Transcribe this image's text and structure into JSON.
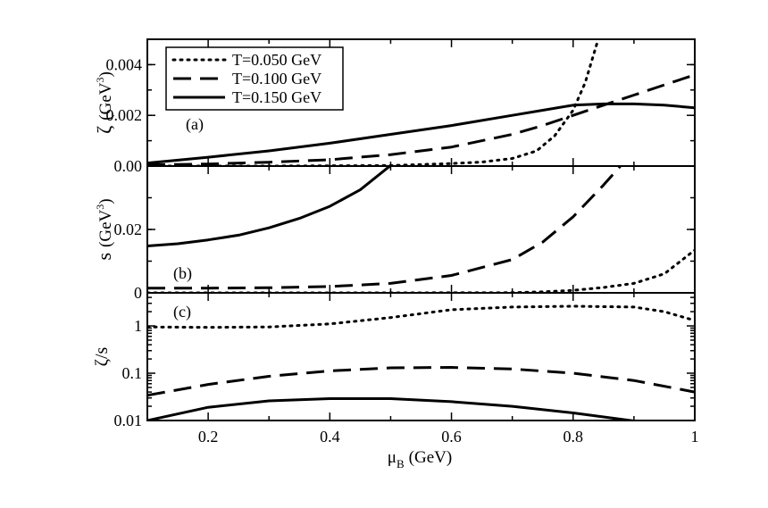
{
  "chart_data": [
    {
      "type": "line",
      "panel_label": "(a)",
      "ylabel_main": "ζ",
      "ylabel_unit": "(GeV",
      "ylabel_exp": "3",
      "ylabel_close": ")",
      "xlim": [
        0.1,
        1.0
      ],
      "ylim": [
        0,
        0.005
      ],
      "yscale": "linear",
      "yticks": [
        0,
        0.002,
        0.004
      ],
      "ytick_labels": [
        "0.00",
        "0.002",
        "0.004"
      ],
      "legend": {
        "position": "top-left",
        "entries": [
          {
            "label": "T=0.050 GeV",
            "style": "dotted"
          },
          {
            "label": "T=0.100 GeV",
            "style": "dashed"
          },
          {
            "label": "T=0.150 GeV",
            "style": "solid"
          }
        ]
      },
      "series": [
        {
          "name": "T=0.050 GeV",
          "style": "dotted",
          "x": [
            0.1,
            0.3,
            0.5,
            0.6,
            0.65,
            0.7,
            0.74,
            0.77,
            0.8,
            0.82,
            0.84
          ],
          "y": [
            0.0,
            0.0,
            2e-05,
            0.0001,
            0.00016,
            0.0003,
            0.0006,
            0.0012,
            0.0022,
            0.0033,
            0.0049
          ]
        },
        {
          "name": "T=0.100 GeV",
          "style": "dashed",
          "x": [
            0.1,
            0.2,
            0.3,
            0.4,
            0.5,
            0.6,
            0.7,
            0.75,
            0.8,
            0.85,
            0.9,
            0.95,
            1.0
          ],
          "y": [
            5e-05,
            8e-05,
            0.00015,
            0.00025,
            0.00045,
            0.00075,
            0.00125,
            0.0016,
            0.002,
            0.0024,
            0.0028,
            0.0032,
            0.0036
          ]
        },
        {
          "name": "T=0.150 GeV",
          "style": "solid",
          "x": [
            0.1,
            0.2,
            0.3,
            0.4,
            0.5,
            0.6,
            0.7,
            0.75,
            0.8,
            0.85,
            0.9,
            0.95,
            1.0
          ],
          "y": [
            0.00012,
            0.00035,
            0.0006,
            0.0009,
            0.00125,
            0.0016,
            0.002,
            0.0022,
            0.0024,
            0.00245,
            0.00245,
            0.0024,
            0.0023
          ]
        }
      ]
    },
    {
      "type": "line",
      "panel_label": "(b)",
      "ylabel_main": "s",
      "ylabel_unit": "(GeV",
      "ylabel_exp": "3",
      "ylabel_close": ")",
      "xlim": [
        0.1,
        1.0
      ],
      "ylim": [
        0,
        0.04
      ],
      "yscale": "linear",
      "yticks": [
        0,
        0.02
      ],
      "ytick_labels": [
        "0",
        "0.02"
      ],
      "series": [
        {
          "name": "T=0.050 GeV",
          "style": "dotted",
          "x": [
            0.1,
            0.5,
            0.7,
            0.75,
            0.8,
            0.85,
            0.9,
            0.95,
            1.0
          ],
          "y": [
            0.0,
            0.0,
            5e-05,
            0.0003,
            0.0008,
            0.0017,
            0.003,
            0.006,
            0.0135
          ]
        },
        {
          "name": "T=0.100 GeV",
          "style": "dashed",
          "x": [
            0.1,
            0.2,
            0.3,
            0.4,
            0.5,
            0.6,
            0.7,
            0.75,
            0.8,
            0.85,
            0.88
          ],
          "y": [
            0.0015,
            0.0015,
            0.0016,
            0.002,
            0.003,
            0.0055,
            0.0105,
            0.016,
            0.024,
            0.034,
            0.0405
          ]
        },
        {
          "name": "T=0.150 GeV",
          "style": "solid",
          "x": [
            0.1,
            0.15,
            0.2,
            0.25,
            0.3,
            0.35,
            0.4,
            0.45,
            0.5
          ],
          "y": [
            0.0148,
            0.0155,
            0.0167,
            0.0182,
            0.0205,
            0.0235,
            0.0273,
            0.0325,
            0.0402
          ]
        }
      ]
    },
    {
      "type": "line",
      "panel_label": "(c)",
      "ylabel_main": "ζ/s",
      "xlim": [
        0.1,
        1.0
      ],
      "ylim": [
        0.01,
        5
      ],
      "yscale": "log",
      "yticks": [
        0.01,
        0.1,
        1
      ],
      "ytick_labels": [
        "0.01",
        "0.1",
        "1"
      ],
      "xticks": [
        0.2,
        0.4,
        0.6,
        0.8,
        1.0
      ],
      "xtick_labels": [
        "0.2",
        "0.4",
        "0.6",
        "0.8",
        "1"
      ],
      "xlabel_main": "μ",
      "xlabel_sub": "B",
      "xlabel_unit": "(GeV)",
      "series": [
        {
          "name": "T=0.050 GeV",
          "style": "dotted",
          "x": [
            0.1,
            0.2,
            0.3,
            0.4,
            0.5,
            0.6,
            0.7,
            0.8,
            0.9,
            0.95,
            1.0
          ],
          "y": [
            0.95,
            0.93,
            0.95,
            1.1,
            1.5,
            2.2,
            2.5,
            2.6,
            2.5,
            2.0,
            1.3
          ]
        },
        {
          "name": "T=0.100 GeV",
          "style": "dashed",
          "x": [
            0.1,
            0.2,
            0.3,
            0.4,
            0.5,
            0.6,
            0.7,
            0.8,
            0.9,
            1.0
          ],
          "y": [
            0.034,
            0.058,
            0.086,
            0.112,
            0.13,
            0.133,
            0.123,
            0.1,
            0.07,
            0.04
          ]
        },
        {
          "name": "T=0.150 GeV",
          "style": "solid",
          "x": [
            0.1,
            0.2,
            0.3,
            0.4,
            0.5,
            0.6,
            0.7,
            0.8,
            0.9
          ],
          "y": [
            0.01,
            0.019,
            0.026,
            0.029,
            0.029,
            0.025,
            0.02,
            0.0145,
            0.0098
          ]
        }
      ]
    }
  ]
}
